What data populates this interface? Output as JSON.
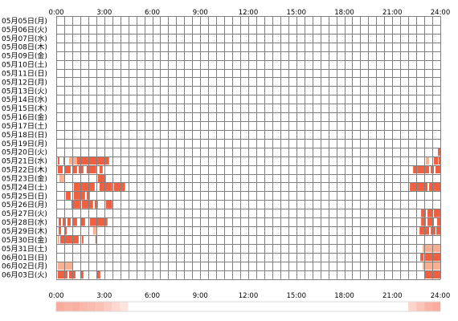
{
  "chart_data": {
    "type": "heatmap",
    "x_unit": "hour",
    "xlim": [
      0,
      24
    ],
    "x_ticks": [
      "0:00",
      "3:00",
      "6:00",
      "9:00",
      "12:00",
      "15:00",
      "18:00",
      "21:00",
      "24:00"
    ],
    "grid": true,
    "colors": {
      "grid_line": "#808080",
      "bar_dark": "#f06040",
      "bar_light": "#f8b090",
      "strip_low": "#fff0ec",
      "strip_high": "#f8a090"
    },
    "rows": [
      {
        "label": "05月05日(月)",
        "intervals": []
      },
      {
        "label": "05月06日(火)",
        "intervals": []
      },
      {
        "label": "05月07日(水)",
        "intervals": []
      },
      {
        "label": "05月08日(木)",
        "intervals": []
      },
      {
        "label": "05月09日(金)",
        "intervals": []
      },
      {
        "label": "05月10日(土)",
        "intervals": []
      },
      {
        "label": "05月11日(日)",
        "intervals": []
      },
      {
        "label": "05月12日(月)",
        "intervals": []
      },
      {
        "label": "05月13日(火)",
        "intervals": []
      },
      {
        "label": "05月14日(水)",
        "intervals": []
      },
      {
        "label": "05月15日(木)",
        "intervals": []
      },
      {
        "label": "05月16日(金)",
        "intervals": []
      },
      {
        "label": "05月17日(土)",
        "intervals": []
      },
      {
        "label": "05月18日(日)",
        "intervals": []
      },
      {
        "label": "05月19日(月)",
        "intervals": []
      },
      {
        "label": "05月20日(火)",
        "intervals": [
          [
            23.85,
            24.0,
            "dark"
          ]
        ]
      },
      {
        "label": "05月21日(水)",
        "intervals": [
          [
            0.1,
            0.2,
            "dark"
          ],
          [
            0.45,
            0.55,
            "dark"
          ],
          [
            0.8,
            1.3,
            "light"
          ],
          [
            1.3,
            3.3,
            "dark"
          ],
          [
            23.1,
            23.3,
            "light"
          ],
          [
            23.6,
            23.85,
            "dark"
          ],
          [
            23.9,
            24.0,
            "dark"
          ]
        ]
      },
      {
        "label": "05月22日(木)",
        "intervals": [
          [
            0.1,
            0.4,
            "dark"
          ],
          [
            0.55,
            0.9,
            "dark"
          ],
          [
            1.0,
            1.3,
            "dark"
          ],
          [
            1.4,
            1.7,
            "dark"
          ],
          [
            1.9,
            2.5,
            "dark"
          ],
          [
            2.7,
            2.9,
            "dark"
          ],
          [
            22.3,
            22.5,
            "dark"
          ],
          [
            22.55,
            23.3,
            "dark"
          ],
          [
            23.4,
            23.6,
            "dark"
          ],
          [
            23.7,
            24.0,
            "dark"
          ]
        ]
      },
      {
        "label": "05月23日(金)",
        "intervals": [
          [
            0.2,
            0.5,
            "light"
          ],
          [
            2.6,
            3.1,
            "dark"
          ]
        ]
      },
      {
        "label": "05月24日(土)",
        "intervals": [
          [
            1.1,
            2.4,
            "dark"
          ],
          [
            2.7,
            3.5,
            "dark"
          ],
          [
            3.6,
            4.3,
            "dark"
          ],
          [
            22.1,
            23.2,
            "dark"
          ],
          [
            23.3,
            24.0,
            "dark"
          ]
        ]
      },
      {
        "label": "05月25日(日)",
        "intervals": [
          [
            0.6,
            0.9,
            "dark"
          ],
          [
            1.1,
            1.8,
            "dark"
          ],
          [
            1.9,
            2.1,
            "dark"
          ]
        ]
      },
      {
        "label": "05月26日(月)",
        "intervals": [
          [
            0.95,
            1.5,
            "dark"
          ],
          [
            1.6,
            2.3,
            "dark"
          ],
          [
            2.4,
            2.6,
            "dark"
          ],
          [
            3.1,
            3.5,
            "dark"
          ]
        ]
      },
      {
        "label": "05月27日(火)",
        "intervals": [
          [
            22.8,
            23.1,
            "dark"
          ],
          [
            23.2,
            23.5,
            "dark"
          ],
          [
            23.6,
            24.0,
            "dark"
          ]
        ]
      },
      {
        "label": "05月28日(水)",
        "intervals": [
          [
            0.15,
            0.3,
            "dark"
          ],
          [
            0.4,
            0.6,
            "dark"
          ],
          [
            0.7,
            0.9,
            "dark"
          ],
          [
            1.0,
            1.3,
            "dark"
          ],
          [
            1.5,
            1.8,
            "dark"
          ],
          [
            2.1,
            3.2,
            "dark"
          ],
          [
            22.8,
            23.1,
            "dark"
          ],
          [
            23.2,
            23.6,
            "dark"
          ],
          [
            23.8,
            24.0,
            "dark"
          ]
        ]
      },
      {
        "label": "05月29日(木)",
        "intervals": [
          [
            0.15,
            0.3,
            "dark"
          ],
          [
            0.5,
            0.65,
            "dark"
          ],
          [
            2.3,
            2.5,
            "light"
          ],
          [
            22.7,
            23.3,
            "dark"
          ],
          [
            23.4,
            23.7,
            "dark"
          ],
          [
            23.75,
            24.0,
            "dark"
          ]
        ]
      },
      {
        "label": "05月30日(金)",
        "intervals": [
          [
            0.1,
            0.2,
            "light"
          ],
          [
            0.25,
            1.4,
            "dark"
          ],
          [
            1.6,
            1.7,
            "dark"
          ],
          [
            2.45,
            2.55,
            "dark"
          ]
        ]
      },
      {
        "label": "05月31日(土)",
        "intervals": [
          [
            22.9,
            23.3,
            "light"
          ],
          [
            23.3,
            24.0,
            "light"
          ]
        ]
      },
      {
        "label": "06月01日(日)",
        "intervals": [
          [
            22.75,
            22.95,
            "dark"
          ],
          [
            23.05,
            23.4,
            "dark"
          ],
          [
            23.4,
            24.0,
            "dark"
          ]
        ]
      },
      {
        "label": "06月02日(月)",
        "intervals": [
          [
            0.1,
            1.0,
            "light"
          ],
          [
            1.0,
            1.05,
            "dark"
          ],
          [
            22.9,
            24.0,
            "light"
          ]
        ]
      },
      {
        "label": "06月03日(火)",
        "intervals": [
          [
            0.1,
            0.7,
            "dark"
          ],
          [
            0.8,
            1.2,
            "dark"
          ],
          [
            1.5,
            1.7,
            "dark"
          ],
          [
            2.55,
            2.75,
            "dark"
          ],
          [
            23.0,
            24.0,
            "dark"
          ]
        ]
      }
    ],
    "activity_strip": [
      {
        "from": 0.0,
        "to": 0.5,
        "level": 0.85
      },
      {
        "from": 0.5,
        "to": 1.0,
        "level": 0.75
      },
      {
        "from": 1.0,
        "to": 1.5,
        "level": 0.8
      },
      {
        "from": 1.5,
        "to": 2.0,
        "level": 0.7
      },
      {
        "from": 2.0,
        "to": 2.5,
        "level": 0.65
      },
      {
        "from": 2.5,
        "to": 3.0,
        "level": 0.6
      },
      {
        "from": 3.0,
        "to": 3.5,
        "level": 0.45
      },
      {
        "from": 3.5,
        "to": 4.0,
        "level": 0.3
      },
      {
        "from": 4.0,
        "to": 4.5,
        "level": 0.15
      },
      {
        "from": 22.0,
        "to": 22.5,
        "level": 0.35
      },
      {
        "from": 22.5,
        "to": 23.0,
        "level": 0.55
      },
      {
        "from": 23.0,
        "to": 23.5,
        "level": 0.75
      },
      {
        "from": 23.5,
        "to": 24.0,
        "level": 0.85
      }
    ]
  }
}
